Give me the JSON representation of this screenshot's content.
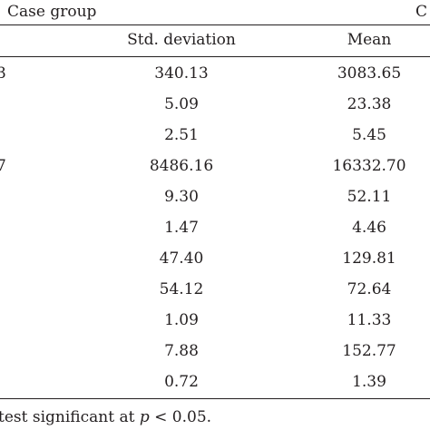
{
  "header": {
    "case_group_label": "Case group",
    "control_group_fragment": "C",
    "std_label": "Std. deviation",
    "mean_label": "Mean"
  },
  "rows": [
    {
      "label_fragment": "3",
      "std": "340.13",
      "mean": "3083.65"
    },
    {
      "label_fragment": "",
      "std": "5.09",
      "mean": "23.38"
    },
    {
      "label_fragment": "",
      "std": "2.51",
      "mean": "5.45"
    },
    {
      "label_fragment": "7",
      "std": "8486.16",
      "mean": "16332.70"
    },
    {
      "label_fragment": "",
      "std": "9.30",
      "mean": "52.11"
    },
    {
      "label_fragment": "",
      "std": "1.47",
      "mean": "4.46"
    },
    {
      "label_fragment": "",
      "std": "47.40",
      "mean": "129.81"
    },
    {
      "label_fragment": "",
      "std": "54.12",
      "mean": "72.64"
    },
    {
      "label_fragment": "",
      "std": "1.09",
      "mean": "11.33"
    },
    {
      "label_fragment": "",
      "std": "7.88",
      "mean": "152.77"
    },
    {
      "label_fragment": "",
      "std": "0.72",
      "mean": "1.39"
    }
  ],
  "footnote": {
    "prefix": "test significant at ",
    "var": "p",
    "suffix": " < 0.05."
  }
}
